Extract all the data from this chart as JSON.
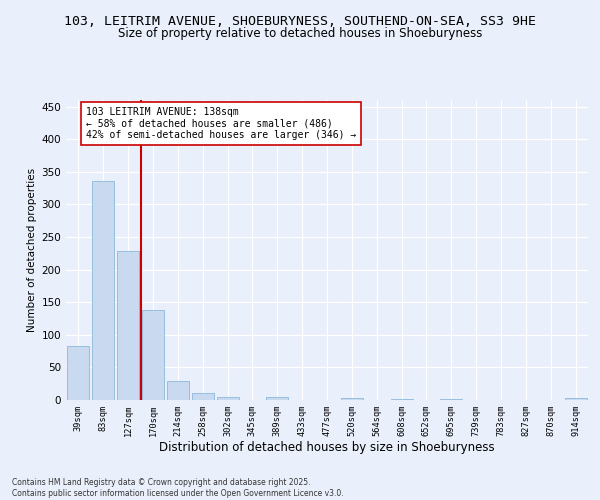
{
  "title_line1": "103, LEITRIM AVENUE, SHOEBURYNESS, SOUTHEND-ON-SEA, SS3 9HE",
  "title_line2": "Size of property relative to detached houses in Shoeburyness",
  "xlabel": "Distribution of detached houses by size in Shoeburyness",
  "ylabel": "Number of detached properties",
  "categories": [
    "39sqm",
    "83sqm",
    "127sqm",
    "170sqm",
    "214sqm",
    "258sqm",
    "302sqm",
    "345sqm",
    "389sqm",
    "433sqm",
    "477sqm",
    "520sqm",
    "564sqm",
    "608sqm",
    "652sqm",
    "695sqm",
    "739sqm",
    "783sqm",
    "827sqm",
    "870sqm",
    "914sqm"
  ],
  "values": [
    83,
    336,
    228,
    138,
    29,
    10,
    5,
    0,
    5,
    0,
    0,
    3,
    0,
    2,
    0,
    2,
    0,
    0,
    0,
    0,
    3
  ],
  "bar_color": "#c9d9f0",
  "bar_edgecolor": "#7bafd4",
  "vline_color": "#cc0000",
  "vline_x": 2.5,
  "annotation_text": "103 LEITRIM AVENUE: 138sqm\n← 58% of detached houses are smaller (486)\n42% of semi-detached houses are larger (346) →",
  "annotation_box_color": "#ffffff",
  "annotation_box_edgecolor": "#cc0000",
  "annotation_fontsize": 7,
  "ylim": [
    0,
    460
  ],
  "yticks": [
    0,
    50,
    100,
    150,
    200,
    250,
    300,
    350,
    400,
    450
  ],
  "footer_text": "Contains HM Land Registry data © Crown copyright and database right 2025.\nContains public sector information licensed under the Open Government Licence v3.0.",
  "background_color": "#eaf0fb",
  "grid_color": "#ffffff",
  "title_fontsize": 9.5,
  "subtitle_fontsize": 8.5,
  "xlabel_fontsize": 8.5,
  "ylabel_fontsize": 7.5,
  "footer_fontsize": 5.5
}
